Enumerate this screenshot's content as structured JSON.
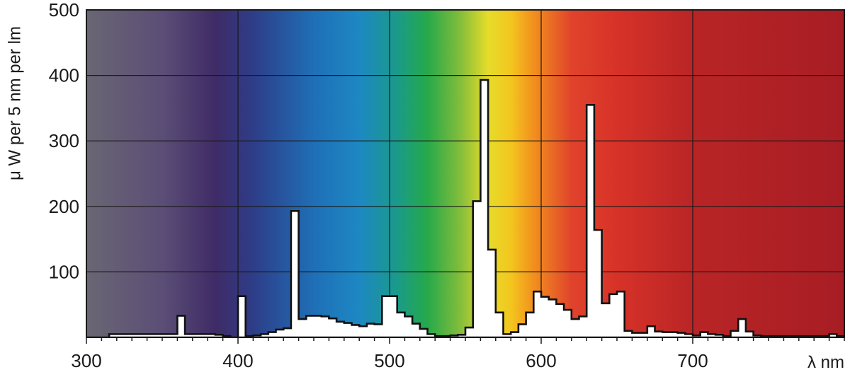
{
  "chart_data": {
    "type": "area",
    "title": "",
    "xlabel": "λ nm",
    "ylabel": "μ W per 5 nm per lm",
    "xlim": [
      300,
      800
    ],
    "ylim": [
      0,
      500
    ],
    "x_ticks": [
      300,
      400,
      500,
      600,
      700
    ],
    "y_ticks": [
      100,
      200,
      300,
      400,
      500
    ],
    "grid": true,
    "background": "visible-spectrum-gradient",
    "series": [
      {
        "x": [
          300,
          305,
          310,
          315,
          320,
          325,
          330,
          335,
          340,
          345,
          350,
          355,
          360,
          365,
          370,
          375,
          380,
          385,
          390,
          395,
          400,
          405,
          410,
          415,
          420,
          425,
          430,
          435,
          440,
          445,
          450,
          455,
          460,
          465,
          470,
          475,
          480,
          485,
          490,
          495,
          500,
          505,
          510,
          515,
          520,
          525,
          530,
          535,
          540,
          545,
          550,
          555,
          560,
          565,
          570,
          575,
          580,
          585,
          590,
          595,
          600,
          605,
          610,
          615,
          620,
          625,
          630,
          635,
          640,
          645,
          650,
          655,
          660,
          665,
          670,
          675,
          680,
          685,
          690,
          695,
          700,
          705,
          710,
          715,
          720,
          725,
          730,
          735,
          740,
          745,
          750,
          755,
          760,
          765,
          770,
          775,
          780,
          785,
          790,
          795
        ],
        "y": [
          0,
          0,
          0,
          5,
          5,
          5,
          5,
          5,
          5,
          5,
          5,
          5,
          33,
          5,
          5,
          5,
          5,
          4,
          2,
          0,
          63,
          2,
          3,
          5,
          8,
          12,
          14,
          193,
          28,
          33,
          33,
          32,
          29,
          24,
          22,
          19,
          17,
          21,
          20,
          63,
          63,
          38,
          32,
          21,
          13,
          5,
          2,
          2,
          3,
          4,
          15,
          208,
          393,
          134,
          38,
          5,
          8,
          20,
          38,
          70,
          62,
          58,
          51,
          42,
          28,
          32,
          355,
          164,
          52,
          66,
          70,
          10,
          7,
          7,
          17,
          9,
          8,
          8,
          7,
          5,
          3,
          8,
          5,
          4,
          2,
          10,
          28,
          9,
          3,
          2,
          2,
          2,
          2,
          2,
          2,
          2,
          2,
          2,
          5,
          2
        ]
      }
    ],
    "colors": {
      "fill": "#ffffff",
      "outline": "#111111",
      "grid": "#1a1a1a",
      "gradient_stops": [
        [
          300,
          "#6a6674"
        ],
        [
          350,
          "#5b4e76"
        ],
        [
          385,
          "#3f2b66"
        ],
        [
          410,
          "#2e3d88"
        ],
        [
          450,
          "#1f6fb6"
        ],
        [
          480,
          "#1d88c3"
        ],
        [
          505,
          "#1a9a8a"
        ],
        [
          525,
          "#26a94a"
        ],
        [
          545,
          "#7bbb3c"
        ],
        [
          565,
          "#e6dc2a"
        ],
        [
          580,
          "#f3c61e"
        ],
        [
          595,
          "#f2901e"
        ],
        [
          620,
          "#e0432c"
        ],
        [
          650,
          "#d73228"
        ],
        [
          700,
          "#b92526"
        ],
        [
          800,
          "#a71d24"
        ]
      ]
    }
  }
}
